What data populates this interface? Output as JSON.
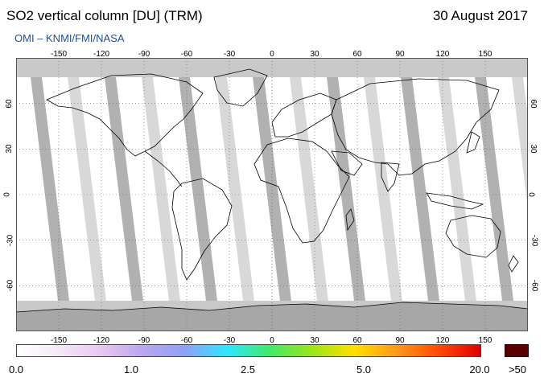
{
  "header": {
    "title": "SO2 vertical column [DU] (TRM)",
    "date": "30 August 2017",
    "credit": "OMI  –  KNMI/FMI/NASA"
  },
  "axes": {
    "longitude_ticks": [
      -150,
      -120,
      -90,
      -60,
      -30,
      0,
      30,
      60,
      90,
      120,
      150
    ],
    "latitude_ticks_left": [
      60,
      30,
      0,
      -30,
      -60
    ],
    "latitude_ticks_right": [
      60,
      30,
      0,
      -30,
      -60
    ],
    "longitude_range": [
      -180,
      180
    ],
    "latitude_range": [
      -90,
      90
    ]
  },
  "colorbar": {
    "labels": [
      "0.0",
      "1.0",
      "2.5",
      "5.0",
      "20.0",
      ">50"
    ],
    "colors": [
      "#ffffff",
      "#f4e9f7",
      "#e9c7f0",
      "#b9a6ef",
      "#8fa0f5",
      "#2fe6ff",
      "#42e86b",
      "#9be51a",
      "#ffe000",
      "#ff9a1a",
      "#ff4a00",
      "#e00000"
    ],
    "overflow_color": "#5a0000"
  },
  "map_colors": {
    "no_data": "#c8c8c8",
    "strip_dark": "#a8a8a8",
    "strip_light": "#d4d4d4",
    "coastline": "#000000",
    "grid": "#666666",
    "background": "#ffffff"
  }
}
